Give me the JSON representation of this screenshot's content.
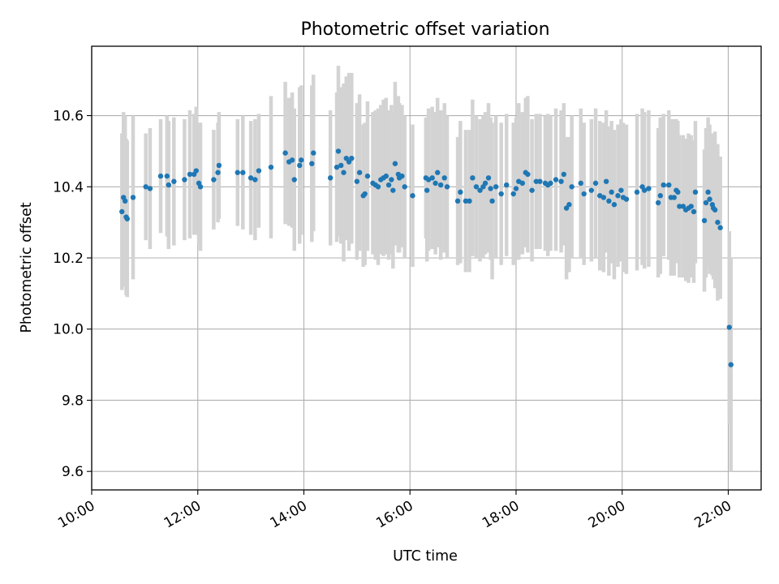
{
  "chart_data": {
    "type": "scatter",
    "title": "Photometric offset variation",
    "xlabel": "UTC time",
    "ylabel": "Photometric offset",
    "x_ticks": [
      "10:00",
      "12:00",
      "14:00",
      "16:00",
      "18:00",
      "20:00",
      "22:00"
    ],
    "y_ticks": [
      "9.6",
      "9.8",
      "10.0",
      "10.2",
      "10.4",
      "10.6"
    ],
    "xlim_hours": [
      10.0,
      22.62
    ],
    "ylim": [
      9.548,
      10.795
    ],
    "grid": true,
    "colors": {
      "marker": "#1f77b4",
      "errorbar": "#d3d3d3",
      "grid": "#b0b0b0"
    },
    "series": [
      {
        "x_hours": [
          10.57,
          10.6,
          10.63,
          10.65,
          10.67,
          10.78,
          11.02,
          11.1,
          11.3,
          11.42,
          11.45,
          11.55,
          11.75,
          11.85,
          11.93,
          11.97,
          12.02,
          12.05,
          12.3,
          12.38,
          12.4,
          12.75,
          12.85,
          13.0,
          13.08,
          13.15,
          13.38,
          13.65,
          13.72,
          13.78,
          13.82,
          13.92,
          13.95,
          14.15,
          14.18,
          14.5,
          14.62,
          14.65,
          14.7,
          14.75,
          14.8,
          14.85,
          14.9,
          15.0,
          15.05,
          15.12,
          15.15,
          15.2,
          15.3,
          15.35,
          15.4,
          15.45,
          15.5,
          15.55,
          15.6,
          15.65,
          15.68,
          15.72,
          15.78,
          15.8,
          15.85,
          15.9,
          16.05,
          16.3,
          16.32,
          16.35,
          16.42,
          16.48,
          16.52,
          16.58,
          16.65,
          16.7,
          16.9,
          16.95,
          17.05,
          17.12,
          17.18,
          17.25,
          17.32,
          17.38,
          17.42,
          17.48,
          17.52,
          17.55,
          17.62,
          17.72,
          17.82,
          17.95,
          18.0,
          18.05,
          18.12,
          18.18,
          18.22,
          18.3,
          18.38,
          18.45,
          18.55,
          18.6,
          18.65,
          18.75,
          18.85,
          18.9,
          18.95,
          19.0,
          19.05,
          19.22,
          19.28,
          19.42,
          19.5,
          19.58,
          19.65,
          19.7,
          19.75,
          19.8,
          19.85,
          19.92,
          19.98,
          20.02,
          20.08,
          20.28,
          20.38,
          20.42,
          20.5,
          20.68,
          20.72,
          20.78,
          20.88,
          20.92,
          20.98,
          21.02,
          21.05,
          21.08,
          21.15,
          21.2,
          21.25,
          21.3,
          21.35,
          21.38,
          21.55,
          21.58,
          21.62,
          21.65,
          21.7,
          21.72,
          21.75,
          21.8,
          21.85,
          22.02,
          22.05
        ],
        "y": [
          10.33,
          10.37,
          10.36,
          10.315,
          10.31,
          10.37,
          10.4,
          10.395,
          10.43,
          10.43,
          10.405,
          10.415,
          10.42,
          10.435,
          10.435,
          10.445,
          10.41,
          10.4,
          10.42,
          10.44,
          10.46,
          10.44,
          10.44,
          10.425,
          10.42,
          10.445,
          10.455,
          10.495,
          10.47,
          10.475,
          10.42,
          10.46,
          10.475,
          10.465,
          10.495,
          10.425,
          10.455,
          10.5,
          10.46,
          10.44,
          10.48,
          10.47,
          10.48,
          10.415,
          10.44,
          10.375,
          10.38,
          10.43,
          10.41,
          10.405,
          10.4,
          10.42,
          10.425,
          10.43,
          10.405,
          10.42,
          10.39,
          10.465,
          10.435,
          10.425,
          10.43,
          10.4,
          10.375,
          10.425,
          10.39,
          10.42,
          10.425,
          10.41,
          10.44,
          10.405,
          10.425,
          10.4,
          10.36,
          10.385,
          10.36,
          10.36,
          10.425,
          10.4,
          10.39,
          10.4,
          10.41,
          10.425,
          10.395,
          10.36,
          10.4,
          10.38,
          10.405,
          10.38,
          10.395,
          10.415,
          10.41,
          10.44,
          10.435,
          10.39,
          10.415,
          10.415,
          10.41,
          10.405,
          10.41,
          10.42,
          10.415,
          10.435,
          10.34,
          10.35,
          10.4,
          10.41,
          10.38,
          10.39,
          10.41,
          10.375,
          10.37,
          10.415,
          10.36,
          10.385,
          10.35,
          10.375,
          10.39,
          10.37,
          10.365,
          10.385,
          10.4,
          10.39,
          10.395,
          10.355,
          10.375,
          10.405,
          10.405,
          10.37,
          10.37,
          10.39,
          10.385,
          10.345,
          10.345,
          10.335,
          10.34,
          10.345,
          10.33,
          10.385,
          10.305,
          10.355,
          10.385,
          10.365,
          10.35,
          10.34,
          10.335,
          10.3,
          10.285,
          10.005,
          9.9
        ],
        "yerr": [
          0.22,
          0.24,
          0.24,
          0.22,
          0.22,
          0.23,
          0.15,
          0.17,
          0.16,
          0.17,
          0.18,
          0.18,
          0.17,
          0.18,
          0.17,
          0.18,
          0.17,
          0.18,
          0.14,
          0.14,
          0.15,
          0.15,
          0.16,
          0.16,
          0.17,
          0.16,
          0.2,
          0.2,
          0.18,
          0.19,
          0.2,
          0.22,
          0.21,
          0.22,
          0.22,
          0.19,
          0.21,
          0.24,
          0.22,
          0.25,
          0.23,
          0.25,
          0.24,
          0.22,
          0.22,
          0.2,
          0.2,
          0.21,
          0.2,
          0.21,
          0.22,
          0.21,
          0.22,
          0.22,
          0.21,
          0.21,
          0.22,
          0.23,
          0.22,
          0.21,
          0.2,
          0.2,
          0.2,
          0.17,
          0.2,
          0.2,
          0.2,
          0.2,
          0.21,
          0.21,
          0.21,
          0.2,
          0.18,
          0.2,
          0.2,
          0.2,
          0.22,
          0.2,
          0.2,
          0.2,
          0.2,
          0.21,
          0.2,
          0.22,
          0.2,
          0.2,
          0.2,
          0.2,
          0.2,
          0.22,
          0.2,
          0.21,
          0.22,
          0.2,
          0.19,
          0.19,
          0.19,
          0.2,
          0.19,
          0.2,
          0.2,
          0.2,
          0.2,
          0.19,
          0.2,
          0.21,
          0.2,
          0.2,
          0.21,
          0.21,
          0.21,
          0.2,
          0.21,
          0.2,
          0.21,
          0.2,
          0.2,
          0.21,
          0.21,
          0.22,
          0.22,
          0.22,
          0.22,
          0.21,
          0.22,
          0.2,
          0.21,
          0.22,
          0.22,
          0.2,
          0.2,
          0.2,
          0.2,
          0.2,
          0.21,
          0.2,
          0.2,
          0.2,
          0.2,
          0.21,
          0.21,
          0.21,
          0.2,
          0.2,
          0.22,
          0.22,
          0.2,
          0.27,
          0.3
        ]
      }
    ]
  }
}
